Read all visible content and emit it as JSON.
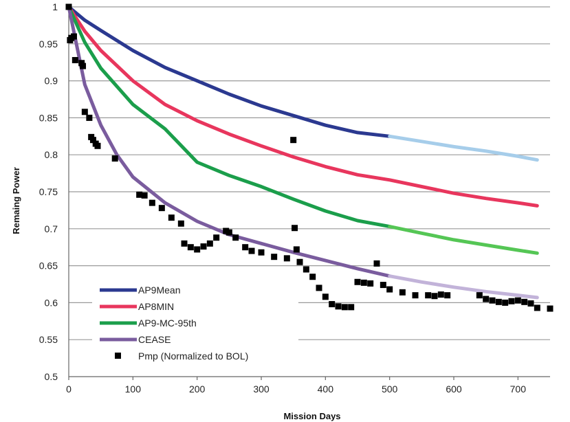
{
  "chart_data": {
    "type": "line",
    "title": "",
    "xlabel": "Mission Days",
    "ylabel": "Remaing Power",
    "xlim": [
      0,
      750
    ],
    "ylim": [
      0.5,
      1.0
    ],
    "x_ticks": [
      0,
      100,
      200,
      300,
      400,
      500,
      600,
      700
    ],
    "y_ticks": [
      0.5,
      0.55,
      0.6,
      0.65,
      0.7,
      0.75,
      0.8,
      0.85,
      0.9,
      0.95,
      1.0
    ],
    "grid": "horizontal",
    "legend_position": "bottom-left",
    "series": [
      {
        "name": "AP9Mean",
        "color": "#2b3990",
        "extension_color": "#a6cdea",
        "extension_from": 500,
        "x": [
          0,
          25,
          50,
          100,
          150,
          200,
          250,
          300,
          350,
          400,
          450,
          500,
          550,
          600,
          650,
          700,
          730
        ],
        "y": [
          1.0,
          0.982,
          0.968,
          0.941,
          0.918,
          0.9,
          0.882,
          0.866,
          0.853,
          0.84,
          0.83,
          0.825,
          0.818,
          0.811,
          0.805,
          0.798,
          0.793
        ]
      },
      {
        "name": "AP8MIN",
        "color": "#e8365d",
        "extension_from": null,
        "x": [
          0,
          25,
          50,
          100,
          150,
          200,
          250,
          300,
          350,
          400,
          450,
          500,
          550,
          600,
          650,
          700,
          730
        ],
        "y": [
          1.0,
          0.967,
          0.941,
          0.9,
          0.868,
          0.846,
          0.828,
          0.812,
          0.797,
          0.784,
          0.773,
          0.766,
          0.757,
          0.748,
          0.741,
          0.735,
          0.731
        ]
      },
      {
        "name": "AP9-MC-95th",
        "color": "#1b9e4b",
        "extension_color": "#55c655",
        "extension_from": 500,
        "x": [
          0,
          25,
          50,
          100,
          150,
          200,
          250,
          300,
          350,
          400,
          450,
          500,
          550,
          600,
          650,
          700,
          730
        ],
        "y": [
          1.0,
          0.952,
          0.917,
          0.868,
          0.835,
          0.79,
          0.772,
          0.757,
          0.74,
          0.724,
          0.711,
          0.703,
          0.694,
          0.685,
          0.678,
          0.671,
          0.667
        ]
      },
      {
        "name": "CEASE",
        "color": "#7a5c9e",
        "extension_color": "#c2b3d9",
        "extension_from": 500,
        "x": [
          0,
          25,
          50,
          75,
          100,
          150,
          200,
          250,
          300,
          350,
          400,
          450,
          500,
          550,
          600,
          650,
          700,
          730
        ],
        "y": [
          1.0,
          0.895,
          0.84,
          0.8,
          0.77,
          0.735,
          0.71,
          0.692,
          0.68,
          0.668,
          0.657,
          0.646,
          0.636,
          0.628,
          0.621,
          0.615,
          0.61,
          0.607
        ]
      },
      {
        "name": "Pmp (Normalized to BOL)",
        "type": "scatter",
        "color": "#000000",
        "x": [
          0,
          2,
          4,
          8,
          10,
          20,
          22,
          25,
          32,
          35,
          38,
          42,
          45,
          72,
          110,
          118,
          130,
          145,
          160,
          175,
          180,
          190,
          200,
          210,
          220,
          230,
          245,
          250,
          260,
          275,
          285,
          300,
          320,
          340,
          350,
          352,
          355,
          360,
          370,
          380,
          390,
          400,
          410,
          420,
          430,
          440,
          450,
          460,
          470,
          480,
          490,
          500,
          520,
          540,
          560,
          570,
          580,
          590,
          640,
          650,
          660,
          670,
          680,
          690,
          700,
          710,
          720,
          730,
          750
        ],
        "y": [
          1.0,
          0.955,
          0.958,
          0.96,
          0.928,
          0.924,
          0.92,
          0.858,
          0.85,
          0.824,
          0.82,
          0.815,
          0.812,
          0.795,
          0.746,
          0.745,
          0.735,
          0.728,
          0.715,
          0.707,
          0.68,
          0.675,
          0.672,
          0.676,
          0.68,
          0.688,
          0.697,
          0.695,
          0.688,
          0.675,
          0.67,
          0.668,
          0.662,
          0.66,
          0.82,
          0.701,
          0.672,
          0.655,
          0.645,
          0.635,
          0.62,
          0.608,
          0.598,
          0.595,
          0.594,
          0.594,
          0.628,
          0.627,
          0.626,
          0.653,
          0.624,
          0.618,
          0.614,
          0.61,
          0.61,
          0.609,
          0.611,
          0.61,
          0.61,
          0.605,
          0.603,
          0.601,
          0.6,
          0.602,
          0.603,
          0.601,
          0.599,
          0.593,
          0.592
        ]
      }
    ]
  }
}
